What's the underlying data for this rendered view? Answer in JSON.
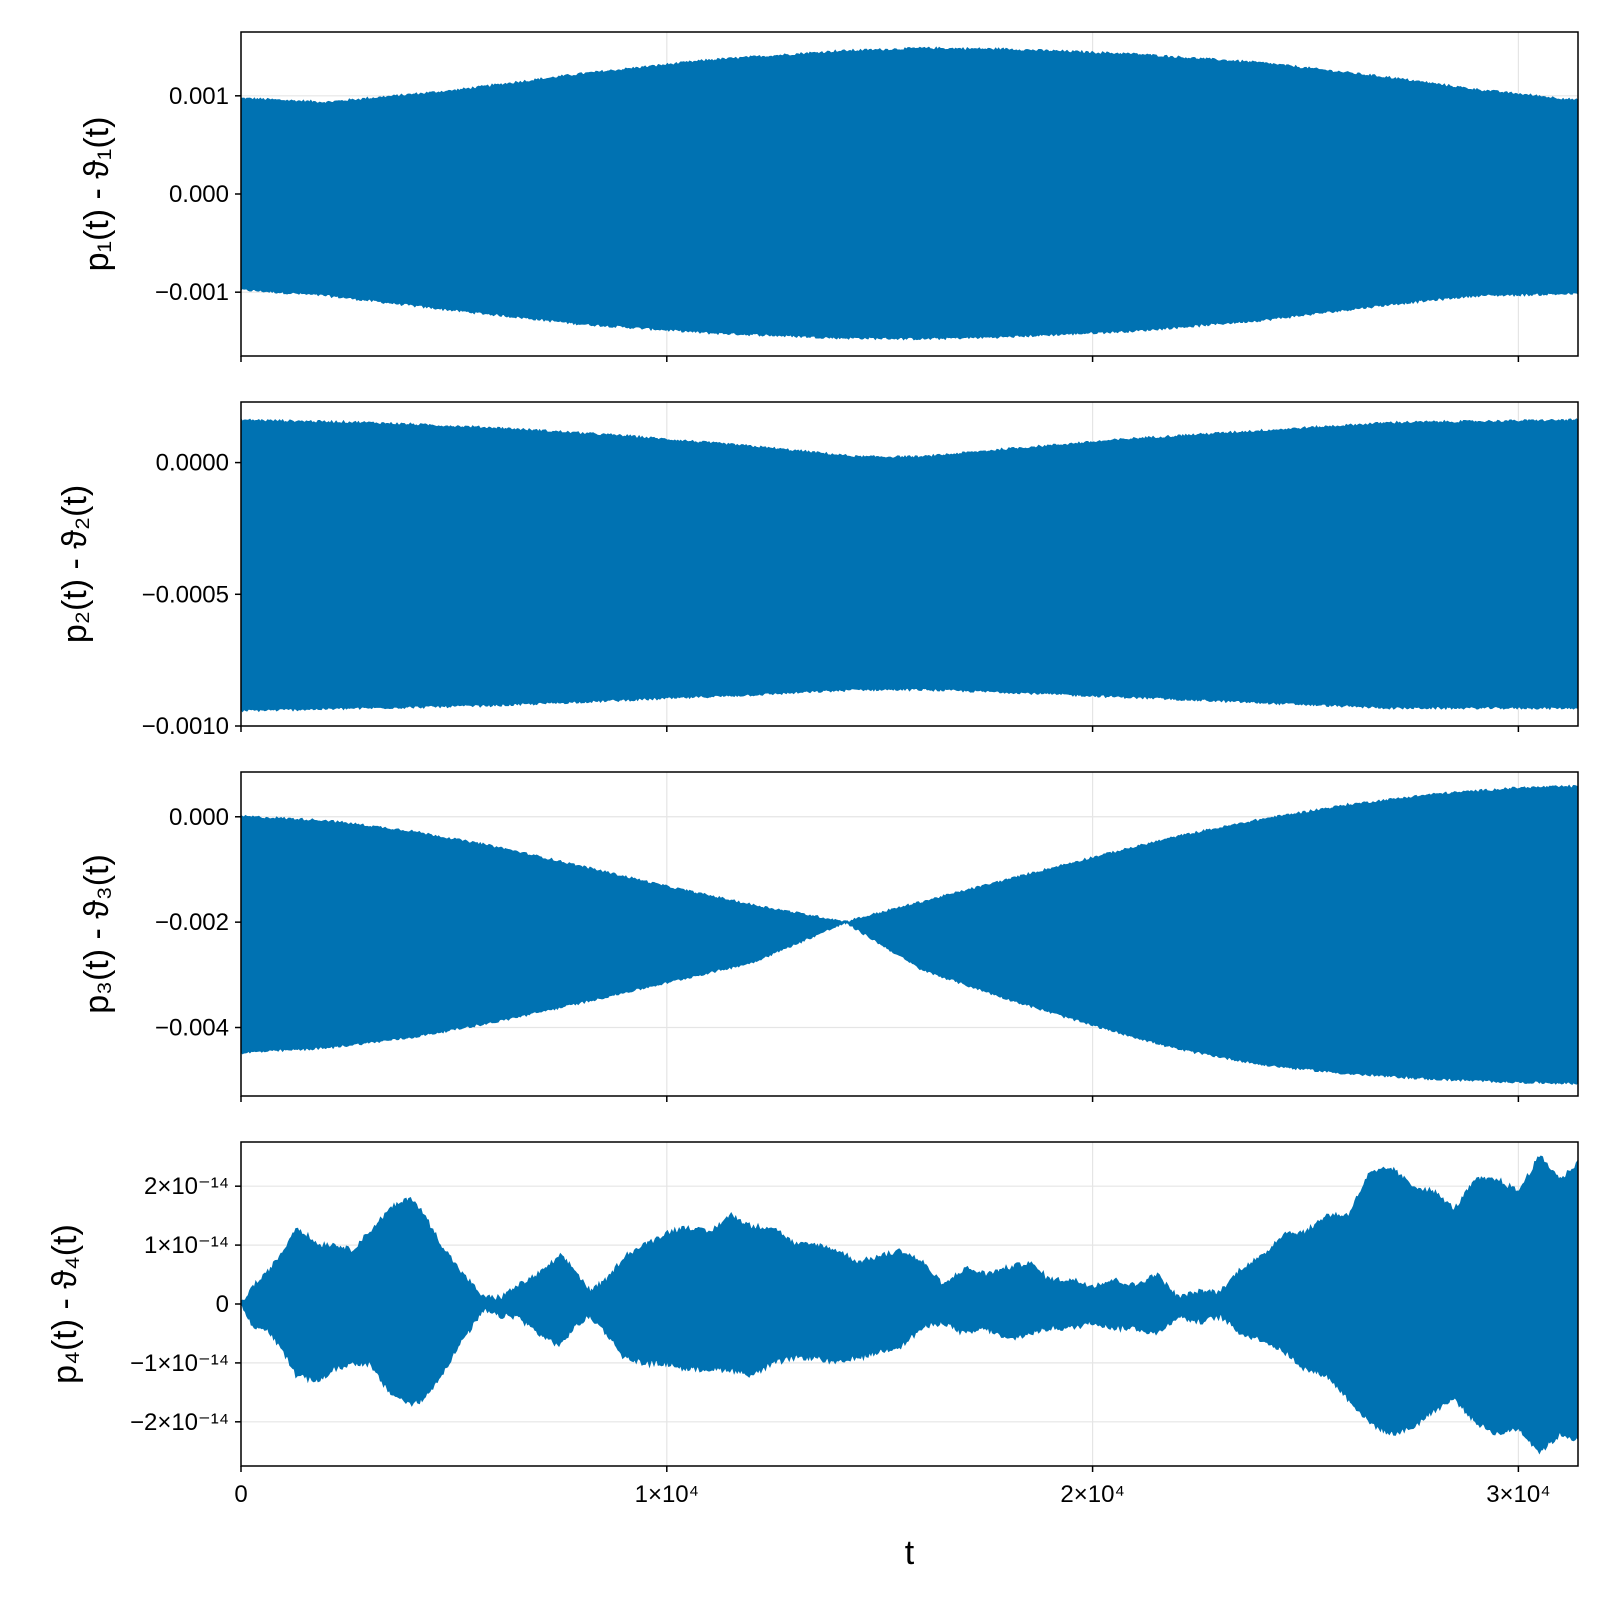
{
  "colors": {
    "series": "#0072b2",
    "grid": "#e5e5e5",
    "frame": "#000000"
  },
  "chart_data": [
    {
      "type": "area",
      "ylabel": "p₁(t) - ϑ₁(t)",
      "xlim": [
        0,
        31400
      ],
      "ylim": [
        -0.00165,
        0.00165
      ],
      "grid": true,
      "show_x_ticklabels": false,
      "x_ticks": [
        0,
        10000,
        20000,
        30000
      ],
      "x_tick_labels": [
        "0",
        "1×10⁴",
        "2×10⁴",
        "3×10⁴"
      ],
      "y_ticks": [
        0.001,
        0.0,
        -0.001
      ],
      "y_tick_labels": [
        "0.001",
        "0.000",
        "−0.001"
      ],
      "envelope": {
        "x": [
          0,
          2000,
          5000,
          8000,
          11000,
          14000,
          16000,
          18000,
          21000,
          24000,
          27000,
          29000,
          31400
        ],
        "upper": [
          0.00097,
          0.00093,
          0.00105,
          0.00122,
          0.00136,
          0.00145,
          0.00148,
          0.00147,
          0.00142,
          0.00133,
          0.00118,
          0.00106,
          0.00095
        ],
        "lower": [
          -0.00097,
          -0.00103,
          -0.00118,
          -0.00132,
          -0.00141,
          -0.00146,
          -0.00147,
          -0.00145,
          -0.00139,
          -0.00128,
          -0.00112,
          -0.00103,
          -0.00101
        ]
      }
    },
    {
      "type": "area",
      "ylabel": "p₂(t) - ϑ₂(t)",
      "xlim": [
        0,
        31400
      ],
      "ylim": [
        -0.001,
        0.00023
      ],
      "grid": true,
      "show_x_ticklabels": false,
      "x_ticks": [
        0,
        10000,
        20000,
        30000
      ],
      "x_tick_labels": [
        "0",
        "1×10⁴",
        "2×10⁴",
        "3×10⁴"
      ],
      "y_ticks": [
        0.0,
        -0.0005,
        -0.001
      ],
      "y_tick_labels": [
        "0.0000",
        "−0.0005",
        "−0.0010"
      ],
      "envelope": {
        "x": [
          0,
          3000,
          6000,
          9000,
          12000,
          14500,
          16000,
          18000,
          21000,
          24000,
          27000,
          31400
        ],
        "upper": [
          0.00016,
          0.00015,
          0.00013,
          0.0001,
          6e-05,
          2e-05,
          2e-05,
          5e-05,
          9e-05,
          0.00012,
          0.00015,
          0.00016
        ],
        "lower": [
          -0.00094,
          -0.00093,
          -0.00092,
          -0.0009,
          -0.00088,
          -0.00086,
          -0.00086,
          -0.00087,
          -0.00089,
          -0.00091,
          -0.00093,
          -0.00093
        ]
      }
    },
    {
      "type": "area",
      "ylabel": "p₃(t) - ϑ₃(t)",
      "xlim": [
        0,
        31400
      ],
      "ylim": [
        -0.0053,
        0.00085
      ],
      "grid": true,
      "show_x_ticklabels": false,
      "x_ticks": [
        0,
        10000,
        20000,
        30000
      ],
      "x_tick_labels": [
        "0",
        "1×10⁴",
        "2×10⁴",
        "3×10⁴"
      ],
      "y_ticks": [
        0.0,
        -0.002,
        -0.004
      ],
      "y_tick_labels": [
        "0.000",
        "−0.002",
        "−0.004"
      ],
      "envelope": {
        "x": [
          0,
          2000,
          4000,
          6000,
          8000,
          10000,
          12000,
          14200,
          16000,
          18000,
          20000,
          22000,
          24000,
          26000,
          28000,
          30000,
          31400
        ],
        "upper": [
          0.0,
          -8e-05,
          -0.00028,
          -0.00058,
          -0.00095,
          -0.00133,
          -0.00168,
          -0.002,
          -0.00162,
          -0.0012,
          -0.00078,
          -0.00038,
          -5e-05,
          0.00022,
          0.00042,
          0.00054,
          0.00057
        ],
        "lower": [
          -0.00447,
          -0.00438,
          -0.00418,
          -0.00388,
          -0.00352,
          -0.00314,
          -0.00276,
          -0.002,
          -0.0029,
          -0.00345,
          -0.00395,
          -0.0044,
          -0.0047,
          -0.00487,
          -0.00497,
          -0.00503,
          -0.00505
        ]
      }
    },
    {
      "type": "area",
      "ylabel": "p₄(t) - ϑ₄(t)",
      "xlabel": "t",
      "xlim": [
        0,
        31400
      ],
      "ylim": [
        -2.75e-14,
        2.75e-14
      ],
      "grid": true,
      "show_x_ticklabels": true,
      "x_ticks": [
        0,
        10000,
        20000,
        30000
      ],
      "x_tick_labels": [
        "0",
        "1×10⁴",
        "2×10⁴",
        "3×10⁴"
      ],
      "y_ticks": [
        2e-14,
        1e-14,
        0,
        -1e-14,
        -2e-14
      ],
      "y_tick_labels": [
        "2×10⁻¹⁴",
        "1×10⁻¹⁴",
        "0",
        "−1×10⁻¹⁴",
        "−2×10⁻¹⁴"
      ],
      "envelope": {
        "x": [
          0,
          300,
          600,
          1000,
          1300,
          1800,
          2200,
          2600,
          3000,
          3500,
          4000,
          4300,
          4700,
          5200,
          5700,
          6100,
          6500,
          7000,
          7500,
          7800,
          8200,
          8600,
          9000,
          9500,
          10000,
          10500,
          11000,
          11500,
          12000,
          12500,
          13000,
          13500,
          14000,
          14500,
          15000,
          15500,
          16000,
          16500,
          17000,
          17500,
          18000,
          18500,
          19000,
          19500,
          20000,
          20500,
          21000,
          21500,
          22000,
          22500,
          23000,
          23500,
          24000,
          24500,
          25000,
          25500,
          26000,
          26500,
          27000,
          27500,
          28000,
          28500,
          29000,
          29500,
          30000,
          30500,
          31000,
          31400
        ],
        "upper": [
          0.0,
          3e-15,
          5e-15,
          9e-15,
          1.3e-14,
          1e-14,
          1e-14,
          9e-15,
          1.2e-14,
          1.6e-14,
          1.8e-14,
          1.5e-14,
          1e-14,
          5e-15,
          1e-15,
          1e-15,
          3e-15,
          5e-15,
          8e-15,
          6e-15,
          2e-15,
          4e-15,
          8e-15,
          1e-14,
          1.2e-14,
          1.3e-14,
          1.2e-14,
          1.5e-14,
          1.3e-14,
          1.3e-14,
          1e-14,
          1e-14,
          9e-15,
          7e-15,
          8e-15,
          9e-15,
          7e-15,
          3e-15,
          6e-15,
          5e-15,
          6e-15,
          7e-15,
          4e-15,
          4e-15,
          3e-15,
          4e-15,
          3e-15,
          5e-15,
          1e-15,
          2e-15,
          2e-15,
          6e-15,
          8e-15,
          1.2e-14,
          1.2e-14,
          1.5e-14,
          1.5e-14,
          2.2e-14,
          2.3e-14,
          2e-14,
          1.9e-14,
          1.6e-14,
          2.1e-14,
          2.1e-14,
          1.9e-14,
          2.5e-14,
          2.1e-14,
          2.4e-14
        ],
        "lower": [
          0.0,
          -4e-15,
          -4e-15,
          -8e-15,
          -1.2e-14,
          -1.3e-14,
          -1.1e-14,
          -1e-14,
          -1e-14,
          -1.5e-14,
          -1.7e-14,
          -1.6e-14,
          -1.2e-14,
          -6e-15,
          -1e-15,
          -2e-15,
          -2e-15,
          -5e-15,
          -7e-15,
          -4e-15,
          -2e-15,
          -5e-15,
          -9e-15,
          -1e-14,
          -1e-14,
          -1.1e-14,
          -1.1e-14,
          -1.1e-14,
          -1.2e-14,
          -1e-14,
          -9e-15,
          -9e-15,
          -1e-14,
          -9e-15,
          -8e-15,
          -7e-15,
          -4e-15,
          -3e-15,
          -5e-15,
          -4e-15,
          -6e-15,
          -5e-15,
          -4e-15,
          -4e-15,
          -3e-15,
          -4e-15,
          -4e-15,
          -5e-15,
          -2e-15,
          -3e-15,
          -2e-15,
          -5e-15,
          -6e-15,
          -8e-15,
          -1.1e-14,
          -1.2e-14,
          -1.6e-14,
          -2e-14,
          -2.2e-14,
          -2.1e-14,
          -1.8e-14,
          -1.6e-14,
          -2e-14,
          -2.2e-14,
          -2.1e-14,
          -2.5e-14,
          -2.2e-14,
          -2.3e-14
        ]
      }
    }
  ]
}
